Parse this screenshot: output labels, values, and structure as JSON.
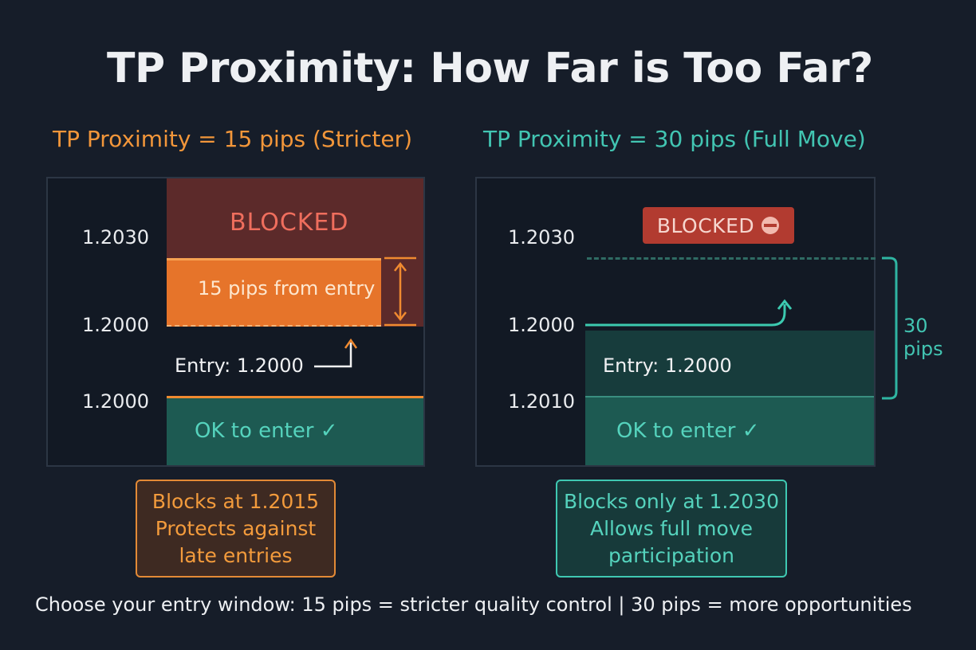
{
  "title": "TP Proximity: How Far is Too Far?",
  "left": {
    "heading": "TP Proximity = 15 pips (Stricter)",
    "price_top": "1.2030",
    "price_mid": "1.2000",
    "price_low": "1.2000",
    "blocked_label": "BLOCKED",
    "zone_label": "15 pips from entry",
    "entry_label": "Entry: 1.2000",
    "ok_label": "OK to enter ✓",
    "note_lines": [
      "Blocks at 1.2015",
      "Protects against",
      "late entries"
    ],
    "colors": {
      "accent": "#f2963a",
      "blocked_bg": "#5c2a2a",
      "zone": "#e6742a",
      "ok_bg": "#1d5a52"
    }
  },
  "right": {
    "heading": "TP Proximity = 30 pips (Full Move)",
    "price_top": "1.2030",
    "price_mid": "1.2000",
    "price_low": "1.2010",
    "blocked_label": "BLOCKED",
    "entry_label": "Entry: 1.2000",
    "ok_label": "OK to enter ✓",
    "bracket_value": "30",
    "bracket_unit": "pips",
    "note_lines": [
      "Blocks only at 1.2030",
      "Allows full move",
      "participation"
    ],
    "colors": {
      "accent": "#42c5b2",
      "blocked_bg": "#b23b30",
      "entry_bg": "#173c3c",
      "ok_bg": "#1d5a52"
    }
  },
  "footer": "Choose your entry window: 15 pips = stricter quality control | 30 pips = more opportunities"
}
